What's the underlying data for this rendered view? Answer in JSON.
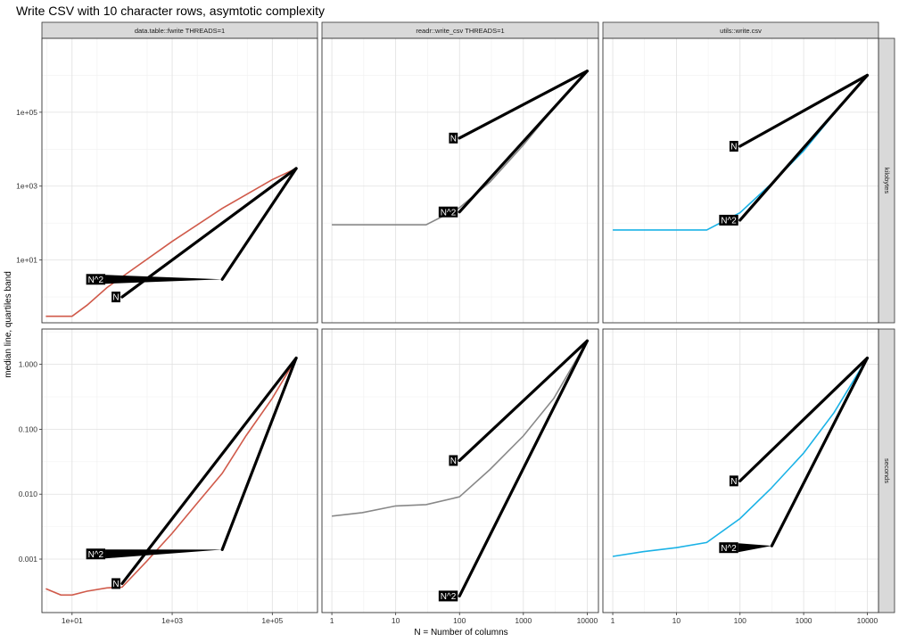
{
  "chart_data": {
    "type": "line",
    "title": "Write CSV with 10 character rows, asymtotic complexity",
    "xlabel": "N = Number of columns",
    "ylabel": "median line, quartiles band",
    "x_scale": "log10",
    "y_scale": "log10",
    "facet_rows": [
      "kilobytes",
      "seconds"
    ],
    "colors": {
      "data.table::fwrite THREADS=1": "#d05a4a",
      "readr::write_csv THREADS=1": "#888888",
      "utils::write.csv": "#1ab2e6",
      "reference_line": "#000000",
      "annotation_bg": "#000000",
      "annotation_text": "#ffffff"
    },
    "panels": [
      {
        "expr": "data.table::fwrite THREADS=1",
        "unit": "kilobytes",
        "xlim": [
          2.5,
          800000
        ],
        "ylim": [
          0.2,
          10000000
        ],
        "xticks": [
          10,
          1000,
          100000
        ],
        "xtick_labels": [
          "1e+01",
          "1e+03",
          "1e+05"
        ],
        "yticks": [
          10,
          1000,
          100000
        ],
        "ytick_labels": [
          "1e+01",
          "1e+03",
          "1e+05"
        ],
        "series": {
          "x": [
            3,
            6,
            10,
            20,
            50,
            100,
            1000,
            10000,
            100000,
            300000
          ],
          "y": [
            0.3,
            0.3,
            0.3,
            0.6,
            1.8,
            3.5,
            32,
            250,
            1500,
            3000
          ]
        },
        "ref_N": {
          "x": [
            100,
            300000
          ],
          "y": [
            1,
            3000
          ]
        },
        "ref_N2": {
          "x": [
            10000,
            300000
          ],
          "y": [
            3,
            3000
          ]
        },
        "N_label": {
          "x": 100,
          "y": 1
        },
        "N2_label": {
          "x": 50,
          "y": 3
        }
      },
      {
        "expr": "data.table::fwrite THREADS=1",
        "unit": "seconds",
        "xlim": [
          2.5,
          800000
        ],
        "ylim": [
          0.00015,
          3.5
        ],
        "xticks": [
          10,
          1000,
          100000
        ],
        "xtick_labels": [
          "1e+01",
          "1e+03",
          "1e+05"
        ],
        "yticks": [
          0.001,
          0.01,
          0.1,
          1
        ],
        "ytick_labels": [
          "0.001",
          "0.010",
          "0.100",
          "1.000"
        ],
        "series": {
          "x": [
            3,
            6,
            10,
            20,
            50,
            100,
            300,
            1000,
            3000,
            10000,
            30000,
            100000,
            300000
          ],
          "y": [
            0.00035,
            0.00028,
            0.00028,
            0.00032,
            0.00036,
            0.00037,
            0.0009,
            0.0025,
            0.0069,
            0.021,
            0.08,
            0.3,
            1.25
          ]
        },
        "ref_N": {
          "x": [
            100,
            300000
          ],
          "y": [
            0.00042,
            1.25
          ]
        },
        "ref_N2": {
          "x": [
            10000,
            300000
          ],
          "y": [
            0.0014,
            1.25
          ]
        },
        "N_label": {
          "x": 100,
          "y": 0.00042
        },
        "N2_label": {
          "x": 50,
          "y": 0.0012
        }
      },
      {
        "expr": "readr::write_csv THREADS=1",
        "unit": "kilobytes",
        "xlim": [
          0.7,
          15000
        ],
        "ylim": [
          0.2,
          10000000
        ],
        "xticks": [
          1,
          10,
          100,
          1000,
          10000
        ],
        "xtick_labels": [
          "1",
          "10",
          "100",
          "1000",
          "10000"
        ],
        "yticks": [
          10,
          1000,
          100000
        ],
        "ytick_labels": [
          "1e+01",
          "1e+03",
          "1e+05"
        ],
        "series": {
          "x": [
            1,
            3,
            10,
            30,
            100,
            300,
            1000,
            3000,
            10000
          ],
          "y": [
            90,
            90,
            90,
            90,
            260,
            1300,
            13000,
            130000,
            1300000
          ]
        },
        "ref_N": {
          "x": [
            100,
            10000
          ],
          "y": [
            20000,
            1300000
          ]
        },
        "ref_N2": {
          "x": [
            100,
            10000
          ],
          "y": [
            200,
            1300000
          ]
        },
        "N_label": {
          "x": 100,
          "y": 20000
        },
        "N2_label": {
          "x": 100,
          "y": 200
        }
      },
      {
        "expr": "readr::write_csv THREADS=1",
        "unit": "seconds",
        "xlim": [
          0.7,
          15000
        ],
        "ylim": [
          0.00015,
          3.5
        ],
        "xticks": [
          1,
          10,
          100,
          1000,
          10000
        ],
        "xtick_labels": [
          "1",
          "10",
          "100",
          "1000",
          "10000"
        ],
        "yticks": [
          0.001,
          0.01,
          0.1,
          1
        ],
        "ytick_labels": [
          "0.001",
          "0.010",
          "0.100",
          "1.000"
        ],
        "series": {
          "x": [
            1,
            3,
            10,
            30,
            100,
            300,
            1000,
            3000,
            10000
          ],
          "y": [
            0.0046,
            0.0052,
            0.0066,
            0.0069,
            0.0091,
            0.024,
            0.079,
            0.3,
            2.3
          ]
        },
        "ref_N": {
          "x": [
            100,
            10000
          ],
          "y": [
            0.033,
            2.3
          ]
        },
        "ref_N2": {
          "x": [
            100,
            10000
          ],
          "y": [
            0.00027,
            2.3
          ]
        },
        "N_label": {
          "x": 100,
          "y": 0.033
        },
        "N2_label": {
          "x": 100,
          "y": 0.00027
        }
      },
      {
        "expr": "utils::write.csv",
        "unit": "kilobytes",
        "xlim": [
          0.7,
          15000
        ],
        "ylim": [
          0.2,
          10000000
        ],
        "xticks": [
          1,
          10,
          100,
          1000,
          10000
        ],
        "xtick_labels": [
          "1",
          "10",
          "100",
          "1000",
          "10000"
        ],
        "yticks": [
          10,
          1000,
          100000
        ],
        "ytick_labels": [
          "1e+01",
          "1e+03",
          "1e+05"
        ],
        "series": {
          "x": [
            1,
            3,
            10,
            30,
            100,
            300,
            1000,
            3000,
            10000
          ],
          "y": [
            65,
            65,
            65,
            65,
            190,
            1100,
            9000,
            90000,
            1000000
          ]
        },
        "ref_N": {
          "x": [
            100,
            10000
          ],
          "y": [
            12000,
            1000000
          ]
        },
        "ref_N2": {
          "x": [
            100,
            10000
          ],
          "y": [
            120,
            1000000
          ]
        },
        "N_label": {
          "x": 100,
          "y": 12000
        },
        "N2_label": {
          "x": 100,
          "y": 120
        }
      },
      {
        "expr": "utils::write.csv",
        "unit": "seconds",
        "xlim": [
          0.7,
          15000
        ],
        "ylim": [
          0.00015,
          3.5
        ],
        "xticks": [
          1,
          10,
          100,
          1000,
          10000
        ],
        "xtick_labels": [
          "1",
          "10",
          "100",
          "1000",
          "10000"
        ],
        "yticks": [
          0.001,
          0.01,
          0.1,
          1
        ],
        "ytick_labels": [
          "0.001",
          "0.010",
          "0.100",
          "1.000"
        ],
        "series": {
          "x": [
            1,
            3,
            10,
            30,
            100,
            300,
            1000,
            3000,
            10000
          ],
          "y": [
            0.0011,
            0.0013,
            0.0015,
            0.0018,
            0.0042,
            0.012,
            0.043,
            0.18,
            1.25
          ]
        },
        "ref_N": {
          "x": [
            100,
            10000
          ],
          "y": [
            0.016,
            1.25
          ]
        },
        "ref_N2": {
          "x": [
            316,
            10000
          ],
          "y": [
            0.0016,
            1.25
          ]
        },
        "N_label": {
          "x": 100,
          "y": 0.016
        },
        "N2_label": {
          "x": 100,
          "y": 0.0015
        }
      }
    ],
    "reference_labels": {
      "N": "N",
      "N2": "N^2"
    }
  }
}
